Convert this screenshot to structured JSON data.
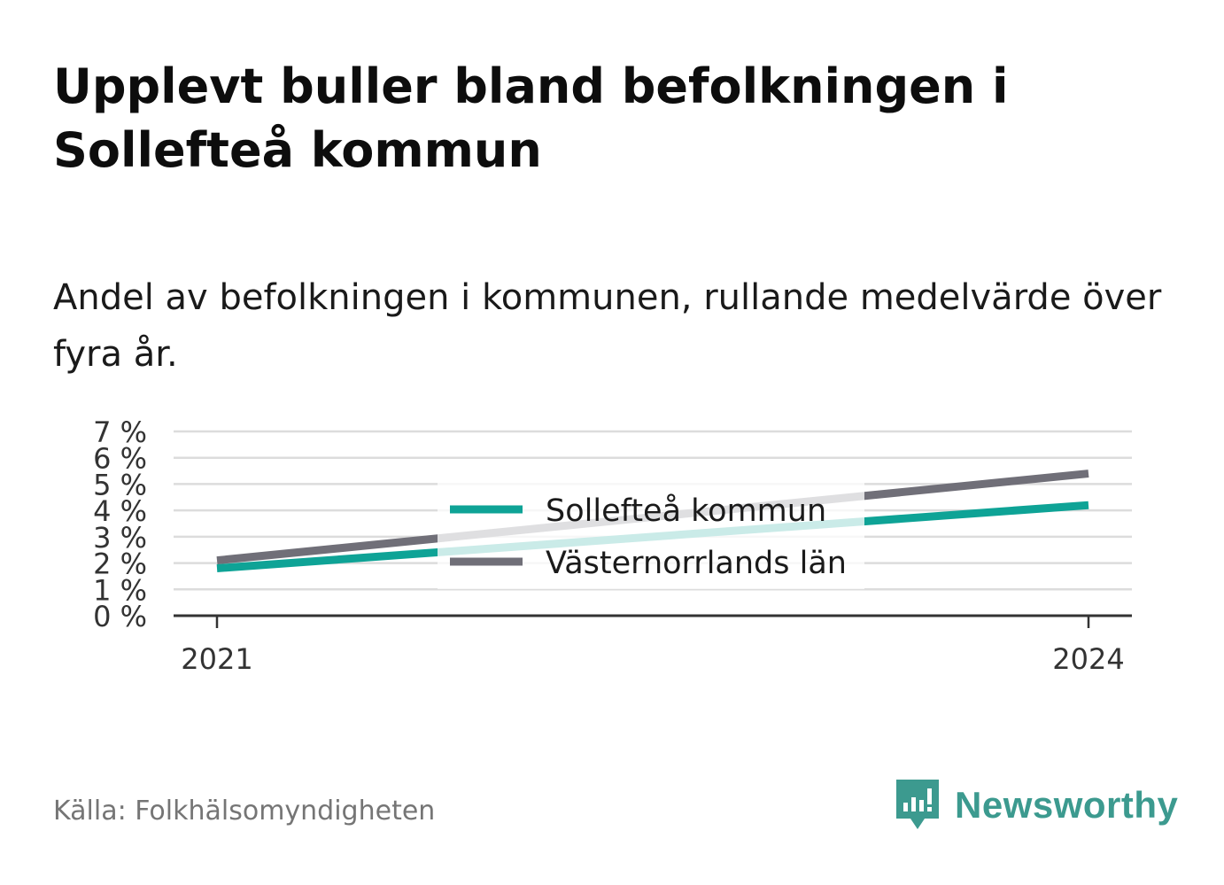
{
  "title": "Upplevt buller bland befolkningen i Sollefteå kommun",
  "subtitle": "Andel av befolkningen i kommunen, rullande medelvärde över fyra år.",
  "source": "Källa: Folkhälsomyndigheten",
  "brand": {
    "name": "Newsworthy",
    "icon": "newsworthy-logo-icon",
    "color": "#3c9a8f"
  },
  "chart_data": {
    "type": "line",
    "x": [
      "2021",
      "2024"
    ],
    "x_tick_labels": [
      "2021",
      "2024"
    ],
    "y_ticks": [
      0,
      1,
      2,
      3,
      4,
      5,
      6,
      7
    ],
    "y_tick_labels": [
      "0 %",
      "1 %",
      "2 %",
      "3 %",
      "4 %",
      "5 %",
      "6 %",
      "7 %"
    ],
    "ylim": [
      0,
      7
    ],
    "grid": true,
    "legend_position": "center",
    "series": [
      {
        "name": "Sollefteå kommun",
        "values": [
          1.8,
          4.2
        ],
        "color": "#0ea396"
      },
      {
        "name": "Västernorrlands län",
        "values": [
          2.1,
          5.4
        ],
        "color": "#706f78"
      }
    ]
  }
}
